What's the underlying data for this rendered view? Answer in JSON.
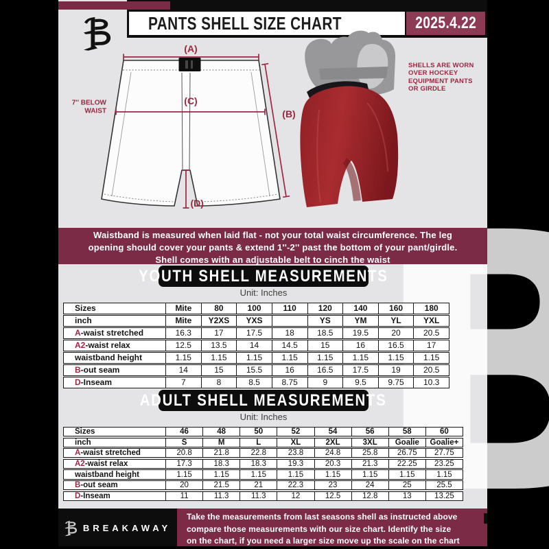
{
  "colors": {
    "maroon": "#7c2b46",
    "maroon_accent": "#9c2742",
    "date_box": "#8d3a55",
    "ink": "#0d0d0d",
    "page_bg": "#e4e3e5",
    "table_line": "#161616",
    "red_shell": "#a62c30"
  },
  "watermark": "B",
  "header": {
    "title": "PANTS SHELL SIZE CHART",
    "date": "2025.4.22"
  },
  "diagram": {
    "label_a": "(A)",
    "label_b": "(B)",
    "label_c": "(C)",
    "label_d": "(D)",
    "below_waist_line1": "7'' BELOW",
    "below_waist_line2": "WAIST",
    "caption": [
      "SHELLS ARE WORN",
      "OVER HOCKEY",
      "EQUIPMENT PANTS",
      "OR GIRDLE"
    ]
  },
  "info_banner": {
    "lines": [
      "Waistband is measured when laid flat - not your total waist circumference. The leg",
      "opening should cover your pants & extend 1''-2'' past the bottom of your pant/girdle.",
      "Shell comes with an adjustable belt to cinch the waist"
    ]
  },
  "youth": {
    "title": "YOUTH SHELL MEASUREMENTS",
    "unit": "Unit: Inches",
    "table": {
      "rows": [
        {
          "prefix": "",
          "label": "Sizes",
          "bold": true,
          "values": [
            "Mite",
            "80",
            "100",
            "110",
            "120",
            "140",
            "160",
            "180"
          ]
        },
        {
          "prefix": "",
          "label": "inch",
          "bold": true,
          "values": [
            "Mite",
            "Y2XS",
            "YXS",
            "",
            "YS",
            "YM",
            "YL",
            "YXL"
          ]
        },
        {
          "prefix": "A",
          "label": "-waist stretched",
          "bold": false,
          "values": [
            "16.3",
            "17",
            "17.5",
            "18",
            "18.5",
            "19.5",
            "20",
            "20.5"
          ]
        },
        {
          "prefix": "A2",
          "label": "-waist relax",
          "bold": false,
          "values": [
            "12.5",
            "13.5",
            "14",
            "14.5",
            "15",
            "16",
            "16.5",
            "17"
          ]
        },
        {
          "prefix": "",
          "label": "waistband height",
          "bold": false,
          "values": [
            "1.15",
            "1.15",
            "1.15",
            "1.15",
            "1.15",
            "1.15",
            "1.15",
            "1.15"
          ]
        },
        {
          "prefix": "B",
          "label": "-out seam",
          "bold": false,
          "values": [
            "14",
            "15",
            "15.5",
            "16",
            "16.5",
            "17.5",
            "19",
            "20.5"
          ]
        },
        {
          "prefix": "D",
          "label": "-Inseam",
          "bold": false,
          "values": [
            "7",
            "8",
            "8.5",
            "8.75",
            "9",
            "9.5",
            "9.75",
            "10.3"
          ]
        }
      ]
    }
  },
  "adult": {
    "title": "ADULT SHELL MEASUREMENTS",
    "unit": "Unit: Inches",
    "table": {
      "rows": [
        {
          "prefix": "",
          "label": "Sizes",
          "bold": true,
          "values": [
            "46",
            "48",
            "50",
            "52",
            "54",
            "56",
            "58",
            "60"
          ]
        },
        {
          "prefix": "",
          "label": "inch",
          "bold": true,
          "values": [
            "S",
            "M",
            "L",
            "XL",
            "2XL",
            "3XL",
            "Goalie",
            "Goalie+"
          ]
        },
        {
          "prefix": "A",
          "label": "-waist stretched",
          "bold": false,
          "values": [
            "20.8",
            "21.8",
            "22.8",
            "23.8",
            "24.8",
            "25.8",
            "26.75",
            "27.75"
          ]
        },
        {
          "prefix": "A2",
          "label": "-waist relax",
          "bold": false,
          "values": [
            "17.3",
            "18.3",
            "18.3",
            "19.3",
            "20.3",
            "21.3",
            "22.25",
            "23.25"
          ]
        },
        {
          "prefix": "",
          "label": "waistband height",
          "bold": false,
          "values": [
            "1.15",
            "1.15",
            "1.15",
            "1.15",
            "1.15",
            "1.15",
            "1.15",
            "1.15"
          ]
        },
        {
          "prefix": "B",
          "label": "-out seam",
          "bold": false,
          "values": [
            "20",
            "21.5",
            "21",
            "22.3",
            "23",
            "24",
            "25",
            "25.5"
          ]
        },
        {
          "prefix": "D",
          "label": "-Inseam",
          "bold": false,
          "values": [
            "11",
            "11.3",
            "11.3",
            "12",
            "12.5",
            "12.8",
            "13",
            "13.25"
          ]
        }
      ]
    }
  },
  "footer": {
    "brand": "BREAKAWAY",
    "lines": [
      "Take the measurements from last seasons shell as instructed above",
      "compare those measurements  with our size chart. Identify the size",
      "on the chart, if you need a larger size move up the scale on the chart"
    ]
  }
}
